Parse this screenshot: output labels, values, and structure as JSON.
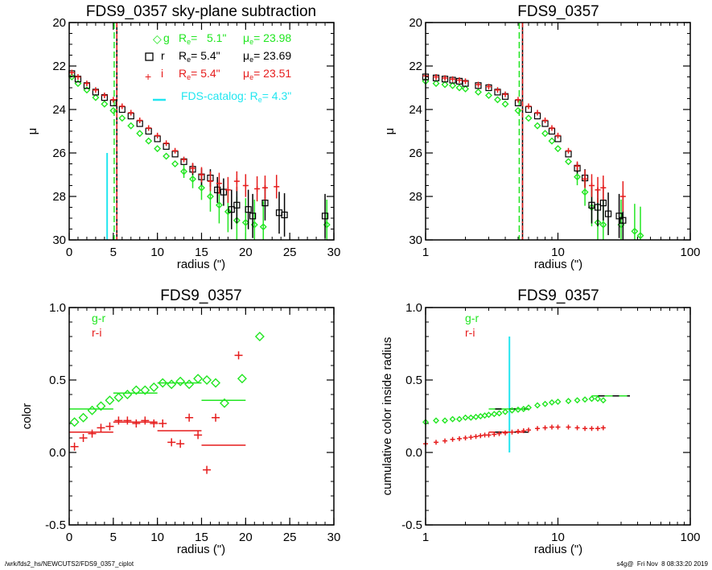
{
  "footer": {
    "left": "/wrk/fds2_hs/NEWCUTS2/FDS9_0357_ciplot",
    "right": "s4g@  Fri Nov  8 08:33:20 2019"
  },
  "colors": {
    "g": "#22e622",
    "r": "#000000",
    "i": "#e61c1c",
    "catalog": "#22e6f0"
  },
  "chart_data": [
    {
      "id": "profile-linear",
      "type": "scatter",
      "title": "FDS9_0357 sky-plane subtraction",
      "xlabel": "radius (\")",
      "ylabel": "μ",
      "xlim": [
        0,
        30
      ],
      "ylim": [
        30,
        20
      ],
      "xscale": "linear",
      "xticks": [
        0,
        5,
        10,
        15,
        20,
        25,
        30
      ],
      "yticks": [
        20,
        22,
        24,
        26,
        28,
        30
      ],
      "legend": [
        {
          "band": "g",
          "marker": "diamond",
          "re_label": "R",
          "re_sub": "e",
          "re_value": "=   5.1\"",
          "mu_label": "μ",
          "mu_sub": "e",
          "mu_value": "= 23.98"
        },
        {
          "band": "r",
          "marker": "square",
          "re_label": "R",
          "re_sub": "e",
          "re_value": "=   5.4\"",
          "mu_label": "μ",
          "mu_sub": "e",
          "mu_value": "= 23.69"
        },
        {
          "band": "i",
          "marker": "plus",
          "re_label": "R",
          "re_sub": "e",
          "re_value": "=   5.4\"",
          "mu_label": "μ",
          "mu_sub": "e",
          "mu_value": "= 23.51"
        }
      ],
      "catalog_legend": {
        "label": "FDS-catalog: R",
        "sub": "e",
        "value": "=   4.3\""
      },
      "vlines": [
        {
          "band": "g",
          "x": 5.1,
          "style": "dashed"
        },
        {
          "band": "r",
          "x": 5.4,
          "style": "solid"
        },
        {
          "band": "i",
          "x": 5.4,
          "style": "dash-dot"
        }
      ],
      "catalog_line": {
        "x": 4.3,
        "y_from": 30,
        "y_to": 26
      },
      "series": [
        {
          "name": "g",
          "x": [
            0.3,
            1,
            2,
            3,
            4,
            5,
            6,
            7,
            8,
            9,
            10,
            11,
            12,
            13,
            14,
            15,
            16,
            17,
            18,
            19,
            20,
            21,
            22,
            29.2
          ],
          "y": [
            22.5,
            22.8,
            23.1,
            23.45,
            23.75,
            24.05,
            24.4,
            24.75,
            25.1,
            25.45,
            25.8,
            26.15,
            26.5,
            26.85,
            27.2,
            27.6,
            28.0,
            28.4,
            28.7,
            29.1,
            29.2,
            29.3,
            29.4,
            29.3
          ]
        },
        {
          "name": "r",
          "x": [
            0.3,
            1,
            2,
            3,
            4,
            5,
            6,
            7,
            8,
            9,
            10,
            11,
            12,
            13,
            14,
            15,
            16,
            16.8,
            17.5,
            18.4,
            19,
            20.3,
            20.8,
            22.2,
            23.8,
            24.4,
            29
          ],
          "y": [
            22.35,
            22.6,
            22.9,
            23.2,
            23.45,
            23.7,
            24.0,
            24.3,
            24.65,
            25.0,
            25.35,
            25.7,
            26.05,
            26.4,
            26.75,
            27.1,
            27.15,
            27.7,
            27.8,
            28.6,
            28.4,
            28.6,
            28.9,
            28.3,
            28.75,
            28.85,
            28.9
          ]
        },
        {
          "name": "i",
          "x": [
            0.3,
            1,
            2,
            3,
            4,
            5,
            6,
            7,
            8,
            9,
            10,
            11,
            12,
            13,
            14,
            15,
            16,
            17,
            18,
            19,
            20,
            21.3,
            22.2,
            23.5
          ],
          "y": [
            22.3,
            22.5,
            22.8,
            23.1,
            23.35,
            23.55,
            23.85,
            24.15,
            24.5,
            24.85,
            25.2,
            25.55,
            25.9,
            26.3,
            26.7,
            27.0,
            27.3,
            27.4,
            27.7,
            27.3,
            27.5,
            27.65,
            27.6,
            27.55
          ]
        }
      ]
    },
    {
      "id": "profile-log",
      "type": "scatter",
      "title": "FDS9_0357",
      "xlabel": "radius (\")",
      "ylabel": "μ",
      "xlim": [
        1,
        100
      ],
      "ylim": [
        30,
        20
      ],
      "xscale": "log",
      "xticks": [
        1,
        10,
        100
      ],
      "yticks": [
        20,
        22,
        24,
        26,
        28,
        30
      ],
      "vlines": [
        {
          "band": "g",
          "x": 5.1,
          "style": "dashed"
        },
        {
          "band": "r",
          "x": 5.4,
          "style": "solid"
        },
        {
          "band": "i",
          "x": 5.4,
          "style": "dash-dot"
        }
      ],
      "series": [
        {
          "name": "g",
          "x": [
            1,
            1.2,
            1.4,
            1.6,
            1.8,
            2,
            2.5,
            3,
            3.5,
            4,
            5,
            6,
            7,
            8,
            9,
            10,
            12,
            14,
            16,
            18,
            20,
            22,
            30,
            38,
            42
          ],
          "y": [
            22.7,
            22.8,
            22.85,
            22.9,
            23.0,
            23.05,
            23.2,
            23.35,
            23.55,
            23.75,
            24.05,
            24.4,
            24.75,
            25.1,
            25.45,
            25.8,
            26.4,
            27.1,
            27.8,
            28.5,
            29.2,
            29.3,
            29.3,
            29.6,
            29.8
          ]
        },
        {
          "name": "r",
          "x": [
            1,
            1.2,
            1.4,
            1.6,
            1.8,
            2,
            2.5,
            3,
            3.5,
            4,
            5,
            6,
            7,
            8,
            9,
            10,
            12,
            14,
            16,
            18,
            20,
            22,
            24,
            29,
            31
          ],
          "y": [
            22.5,
            22.55,
            22.6,
            22.65,
            22.7,
            22.8,
            22.9,
            23.0,
            23.2,
            23.4,
            23.7,
            24.0,
            24.3,
            24.65,
            25.0,
            25.35,
            26.05,
            26.7,
            27.15,
            28.4,
            28.5,
            28.3,
            28.8,
            28.9,
            29.1
          ]
        },
        {
          "name": "i",
          "x": [
            1,
            1.2,
            1.4,
            1.6,
            1.8,
            2,
            2.5,
            3,
            3.5,
            4,
            5,
            6,
            7,
            8,
            9,
            10,
            12,
            14,
            16,
            18,
            20,
            22,
            31
          ],
          "y": [
            22.45,
            22.5,
            22.55,
            22.6,
            22.65,
            22.7,
            22.85,
            22.95,
            23.1,
            23.3,
            23.55,
            23.85,
            24.15,
            24.5,
            24.85,
            25.2,
            25.9,
            26.6,
            27.2,
            27.5,
            27.7,
            27.6,
            28.0
          ]
        }
      ]
    },
    {
      "id": "color-profile",
      "type": "scatter",
      "title": "FDS9_0357",
      "xlabel": "radius (\")",
      "ylabel": "color",
      "xlim": [
        0,
        30
      ],
      "ylim": [
        -0.5,
        1.0
      ],
      "xscale": "linear",
      "xticks": [
        0,
        5,
        10,
        15,
        20,
        25,
        30
      ],
      "yticks": [
        -0.5,
        0.0,
        0.5,
        1.0
      ],
      "ytick_labels": [
        "-0.5",
        "0.0",
        "0.5",
        "1.0"
      ],
      "legend": [
        {
          "name": "g-r"
        },
        {
          "name": "r-i"
        }
      ],
      "series": [
        {
          "name": "g-r",
          "marker": "diamond",
          "x": [
            0.6,
            1.6,
            2.6,
            3.6,
            4.6,
            5.6,
            6.6,
            7.6,
            8.6,
            9.6,
            10.6,
            11.6,
            12.6,
            13.6,
            14.6,
            15.6,
            16.6,
            17.6,
            19.6,
            21.6
          ],
          "y": [
            0.21,
            0.24,
            0.29,
            0.32,
            0.36,
            0.38,
            0.4,
            0.43,
            0.43,
            0.45,
            0.48,
            0.47,
            0.49,
            0.47,
            0.51,
            0.5,
            0.48,
            0.34,
            0.51,
            0.8
          ]
        },
        {
          "name": "r-i",
          "marker": "plus",
          "x": [
            0.6,
            1.6,
            2.6,
            3.6,
            4.6,
            5.6,
            6.6,
            7.6,
            8.6,
            9.6,
            10.6,
            11.6,
            12.6,
            13.6,
            14.6,
            15.6,
            16.6,
            19.2
          ],
          "y": [
            0.04,
            0.1,
            0.13,
            0.17,
            0.18,
            0.22,
            0.22,
            0.2,
            0.22,
            0.2,
            0.2,
            0.07,
            0.06,
            0.24,
            0.12,
            -0.12,
            0.24,
            0.67
          ]
        }
      ],
      "segments": [
        {
          "series": "g-r",
          "x0": 0,
          "x1": 5,
          "y": 0.3
        },
        {
          "series": "g-r",
          "x0": 5,
          "x1": 10,
          "y": 0.41
        },
        {
          "series": "g-r",
          "x0": 10,
          "x1": 15,
          "y": 0.48
        },
        {
          "series": "g-r",
          "x0": 15,
          "x1": 20,
          "y": 0.36
        },
        {
          "series": "r-i",
          "x0": 0,
          "x1": 5,
          "y": 0.14
        },
        {
          "series": "r-i",
          "x0": 5,
          "x1": 10,
          "y": 0.21
        },
        {
          "series": "r-i",
          "x0": 10,
          "x1": 15,
          "y": 0.15
        },
        {
          "series": "r-i",
          "x0": 15,
          "x1": 20,
          "y": 0.05
        }
      ]
    },
    {
      "id": "cumulative-color",
      "type": "scatter",
      "title": "FDS9_0357",
      "xlabel": "radius (\")",
      "ylabel": "cumulative color inside radius",
      "xlim": [
        1,
        100
      ],
      "ylim": [
        -0.5,
        1.0
      ],
      "xscale": "log",
      "xticks": [
        1,
        10,
        100
      ],
      "yticks": [
        -0.5,
        0.0,
        0.5,
        1.0
      ],
      "ytick_labels": [
        "-0.5",
        "0.0",
        "0.5",
        "1.0"
      ],
      "legend": [
        {
          "name": "g-r"
        },
        {
          "name": "r-i"
        }
      ],
      "catalog_line": {
        "x": 4.3,
        "y_from": 0.0,
        "y_to": 0.8
      },
      "series": [
        {
          "name": "g-r",
          "marker": "diamond",
          "x": [
            1,
            1.2,
            1.4,
            1.6,
            1.8,
            2,
            2.2,
            2.4,
            2.6,
            2.8,
            3,
            3.3,
            3.6,
            4,
            4.5,
            5,
            5.5,
            6,
            7,
            8,
            9,
            10,
            12,
            14,
            16,
            18,
            20,
            22
          ],
          "y": [
            0.21,
            0.22,
            0.22,
            0.23,
            0.23,
            0.24,
            0.24,
            0.245,
            0.25,
            0.255,
            0.26,
            0.265,
            0.27,
            0.28,
            0.29,
            0.295,
            0.3,
            0.31,
            0.325,
            0.335,
            0.345,
            0.35,
            0.355,
            0.36,
            0.365,
            0.37,
            0.37,
            0.36
          ]
        },
        {
          "name": "r-i",
          "marker": "plus",
          "x": [
            1,
            1.2,
            1.4,
            1.6,
            1.8,
            2,
            2.2,
            2.4,
            2.6,
            2.8,
            3,
            3.3,
            3.6,
            4,
            4.5,
            5,
            5.5,
            6,
            7,
            8,
            9,
            10,
            12,
            14,
            16,
            18,
            20,
            22
          ],
          "y": [
            0.06,
            0.07,
            0.08,
            0.09,
            0.095,
            0.1,
            0.105,
            0.11,
            0.115,
            0.12,
            0.12,
            0.125,
            0.13,
            0.135,
            0.14,
            0.145,
            0.15,
            0.155,
            0.165,
            0.17,
            0.175,
            0.175,
            0.175,
            0.17,
            0.165,
            0.165,
            0.165,
            0.17
          ]
        }
      ],
      "segments": [
        {
          "series": "g-r",
          "x0": 3,
          "x1": 6,
          "y": 0.3,
          "dashed_black": true
        },
        {
          "series": "g-r",
          "x0": 18,
          "x1": 35,
          "y": 0.39,
          "dashed_black": true
        },
        {
          "series": "r-i",
          "x0": 3,
          "x1": 6,
          "y": 0.14,
          "dashed_black": true
        }
      ]
    }
  ]
}
